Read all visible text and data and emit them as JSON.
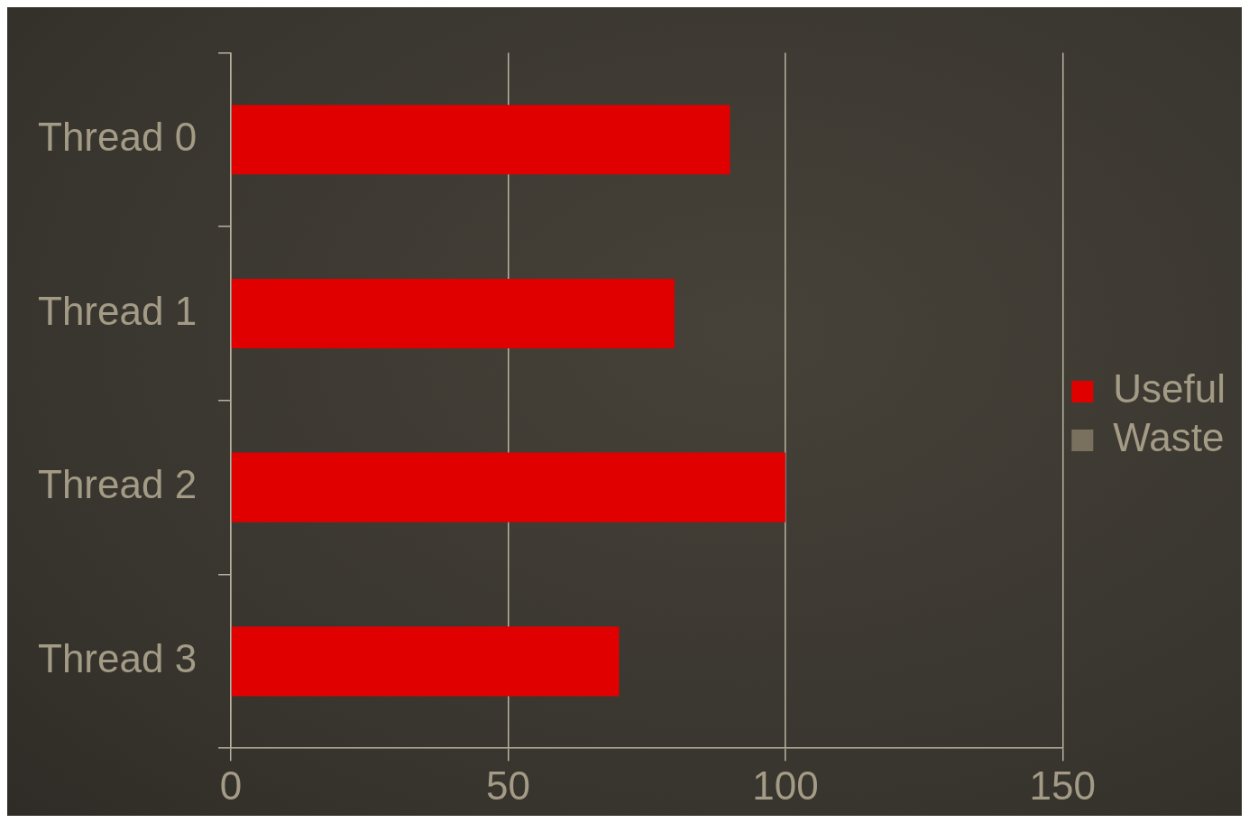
{
  "chart_data": {
    "type": "bar",
    "orientation": "horizontal",
    "stacked": true,
    "categories": [
      "Thread 0",
      "Thread 1",
      "Thread 2",
      "Thread 3"
    ],
    "series": [
      {
        "name": "Useful",
        "color": "#e00000",
        "values": [
          90,
          80,
          100,
          70
        ]
      },
      {
        "name": "Waste",
        "color": "#7a705e",
        "values": [
          null,
          null,
          null,
          null
        ]
      }
    ],
    "xlim": [
      0,
      150
    ],
    "xticks": [
      0,
      50,
      100,
      150
    ],
    "grid": "x",
    "legend": "right"
  }
}
